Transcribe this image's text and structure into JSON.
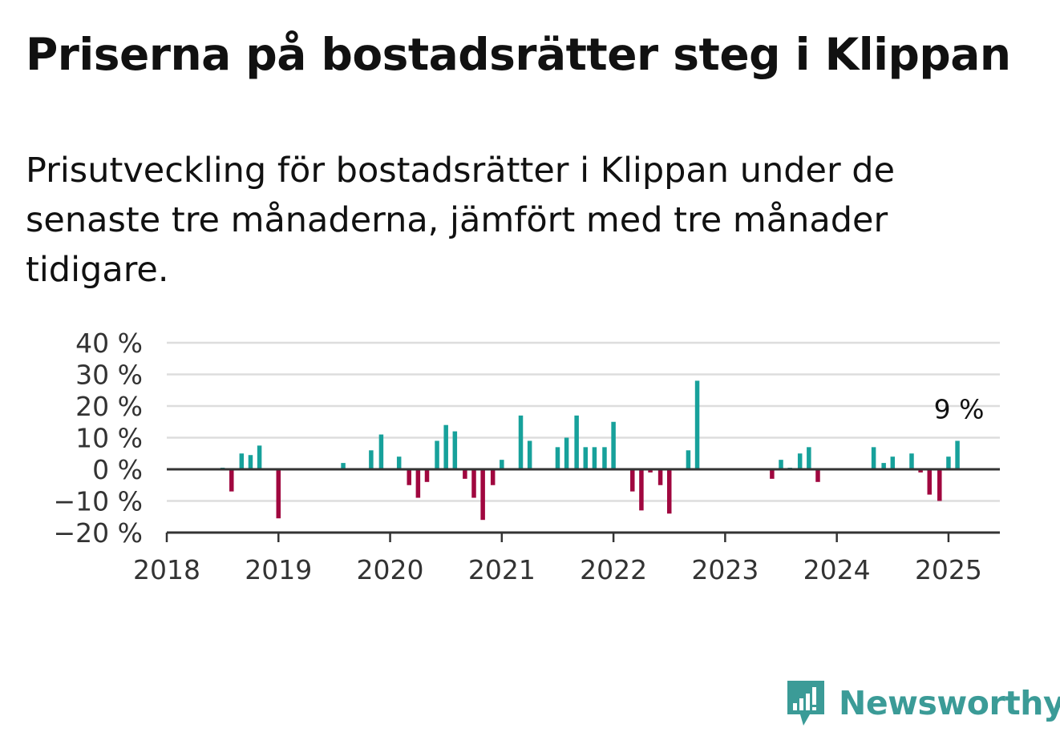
{
  "chart_data": {
    "type": "bar",
    "title": "Priserna på bostadsrätter steg i Klippan",
    "subtitle": "Prisutveckling för bostadsrätter i Klippan under de senaste tre månaderna, jämfört med tre månader tidigare.",
    "xlabel": "",
    "ylabel": "",
    "ylim": [
      -20,
      40
    ],
    "xlim": [
      2018,
      2025.46
    ],
    "y_ticks": [
      -20,
      -10,
      0,
      10,
      20,
      30,
      40
    ],
    "y_tick_labels": [
      "−20 %",
      "−10 %",
      "0 %",
      "10 %",
      "20 %",
      "30 %",
      "40 %"
    ],
    "x_ticks": [
      2018,
      2019,
      2020,
      2021,
      2022,
      2023,
      2024,
      2025
    ],
    "x_tick_labels": [
      "2018",
      "2019",
      "2020",
      "2021",
      "2022",
      "2023",
      "2024",
      "2025"
    ],
    "grid": true,
    "colors": {
      "positive": "#17a19b",
      "negative": "#a0073f",
      "grid": "#dddddd",
      "axis": "#333333"
    },
    "annotation": {
      "text": "9 %",
      "x": 2025.08,
      "y": 9
    },
    "x": [
      2018.5,
      2018.58,
      2018.67,
      2018.75,
      2018.83,
      2019.0,
      2019.58,
      2019.83,
      2019.92,
      2020.08,
      2020.17,
      2020.25,
      2020.33,
      2020.42,
      2020.5,
      2020.58,
      2020.67,
      2020.75,
      2020.83,
      2020.92,
      2021.0,
      2021.17,
      2021.25,
      2021.5,
      2021.58,
      2021.67,
      2021.75,
      2021.83,
      2021.92,
      2022.0,
      2022.17,
      2022.25,
      2022.33,
      2022.42,
      2022.5,
      2022.67,
      2022.75,
      2023.42,
      2023.5,
      2023.58,
      2023.67,
      2023.75,
      2023.83,
      2024.33,
      2024.42,
      2024.5,
      2024.67,
      2024.75,
      2024.83,
      2024.92,
      2025.0,
      2025.08
    ],
    "values": [
      0.5,
      -7,
      5,
      4.5,
      7.5,
      -15.5,
      2,
      6,
      11,
      4,
      -5,
      -9,
      -4,
      9,
      14,
      12,
      -3,
      -9,
      -16,
      -5,
      3,
      17,
      9,
      7,
      10,
      17,
      7,
      7,
      7,
      15,
      -7,
      -13,
      -1,
      -5,
      -14,
      6,
      28,
      -3,
      3,
      0.5,
      5,
      7,
      -4,
      7,
      2,
      4,
      5,
      -1,
      -8,
      -10,
      4,
      9
    ]
  },
  "brand": {
    "name": "Newsworthy",
    "icon": "newsworthy-logo-icon",
    "color": "#3b9b97"
  }
}
